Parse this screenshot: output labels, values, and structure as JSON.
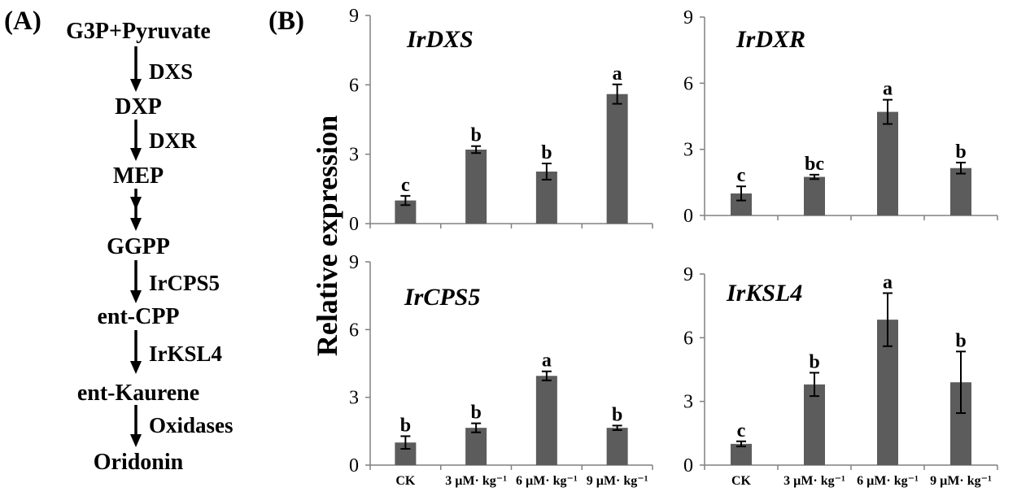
{
  "panel_a": {
    "label": "(A)",
    "compounds": [
      "G3P+Pyruvate",
      "DXP",
      "MEP",
      "GGPP",
      "ent-CPP",
      "ent-Kaurene",
      "Oridonin"
    ],
    "reactions": [
      {
        "enzyme": "DXS",
        "multi_step": false
      },
      {
        "enzyme": "DXR",
        "multi_step": false
      },
      {
        "enzyme": null,
        "multi_step": true
      },
      {
        "enzyme": "IrCPS5",
        "multi_step": false
      },
      {
        "enzyme": "IrKSL4",
        "multi_step": false
      },
      {
        "enzyme": "Oxidases",
        "multi_step": false
      }
    ]
  },
  "panel_b": {
    "label": "(B)",
    "ylabel": "Relative expression"
  },
  "colors": {
    "bar": "#5c5c5c",
    "axis": "#808080",
    "error_bar": "#000000",
    "text": "#000000"
  },
  "chart_data": [
    {
      "type": "bar",
      "title": "IrDXS",
      "values": [
        1.0,
        3.2,
        2.25,
        5.6
      ],
      "errors": [
        0.2,
        0.15,
        0.35,
        0.42
      ],
      "significance": [
        "c",
        "b",
        "b",
        "a"
      ],
      "ylim": [
        0,
        9
      ],
      "yticks": [
        0,
        3,
        6,
        9
      ]
    },
    {
      "type": "bar",
      "title": "IrDXR",
      "values": [
        1.0,
        1.75,
        4.7,
        2.15
      ],
      "errors": [
        0.32,
        0.1,
        0.55,
        0.25
      ],
      "significance": [
        "c",
        "bc",
        "a",
        "b"
      ],
      "ylim": [
        0,
        9
      ],
      "yticks": [
        0,
        3,
        6,
        9
      ]
    },
    {
      "type": "bar",
      "title": "IrCPS5",
      "categories": [
        "CK",
        "3 µM· kg⁻¹",
        "6 µM· kg⁻¹",
        "9 µM· kg⁻¹"
      ],
      "values": [
        1.0,
        1.65,
        3.95,
        1.65
      ],
      "errors": [
        0.28,
        0.2,
        0.2,
        0.1
      ],
      "significance": [
        "b",
        "b",
        "a",
        "b"
      ],
      "ylim": [
        0,
        9
      ],
      "yticks": [
        0,
        3,
        6,
        9
      ]
    },
    {
      "type": "bar",
      "title": "IrKSL4",
      "categories": [
        "CK",
        "3 µM· kg⁻¹",
        "6 µM· kg⁻¹",
        "9 µM· kg⁻¹"
      ],
      "values": [
        1.0,
        3.8,
        6.85,
        3.9
      ],
      "errors": [
        0.12,
        0.55,
        1.25,
        1.45
      ],
      "significance": [
        "c",
        "b",
        "a",
        "b"
      ],
      "ylim": [
        0,
        9
      ],
      "yticks": [
        0,
        3,
        6,
        9
      ]
    }
  ]
}
